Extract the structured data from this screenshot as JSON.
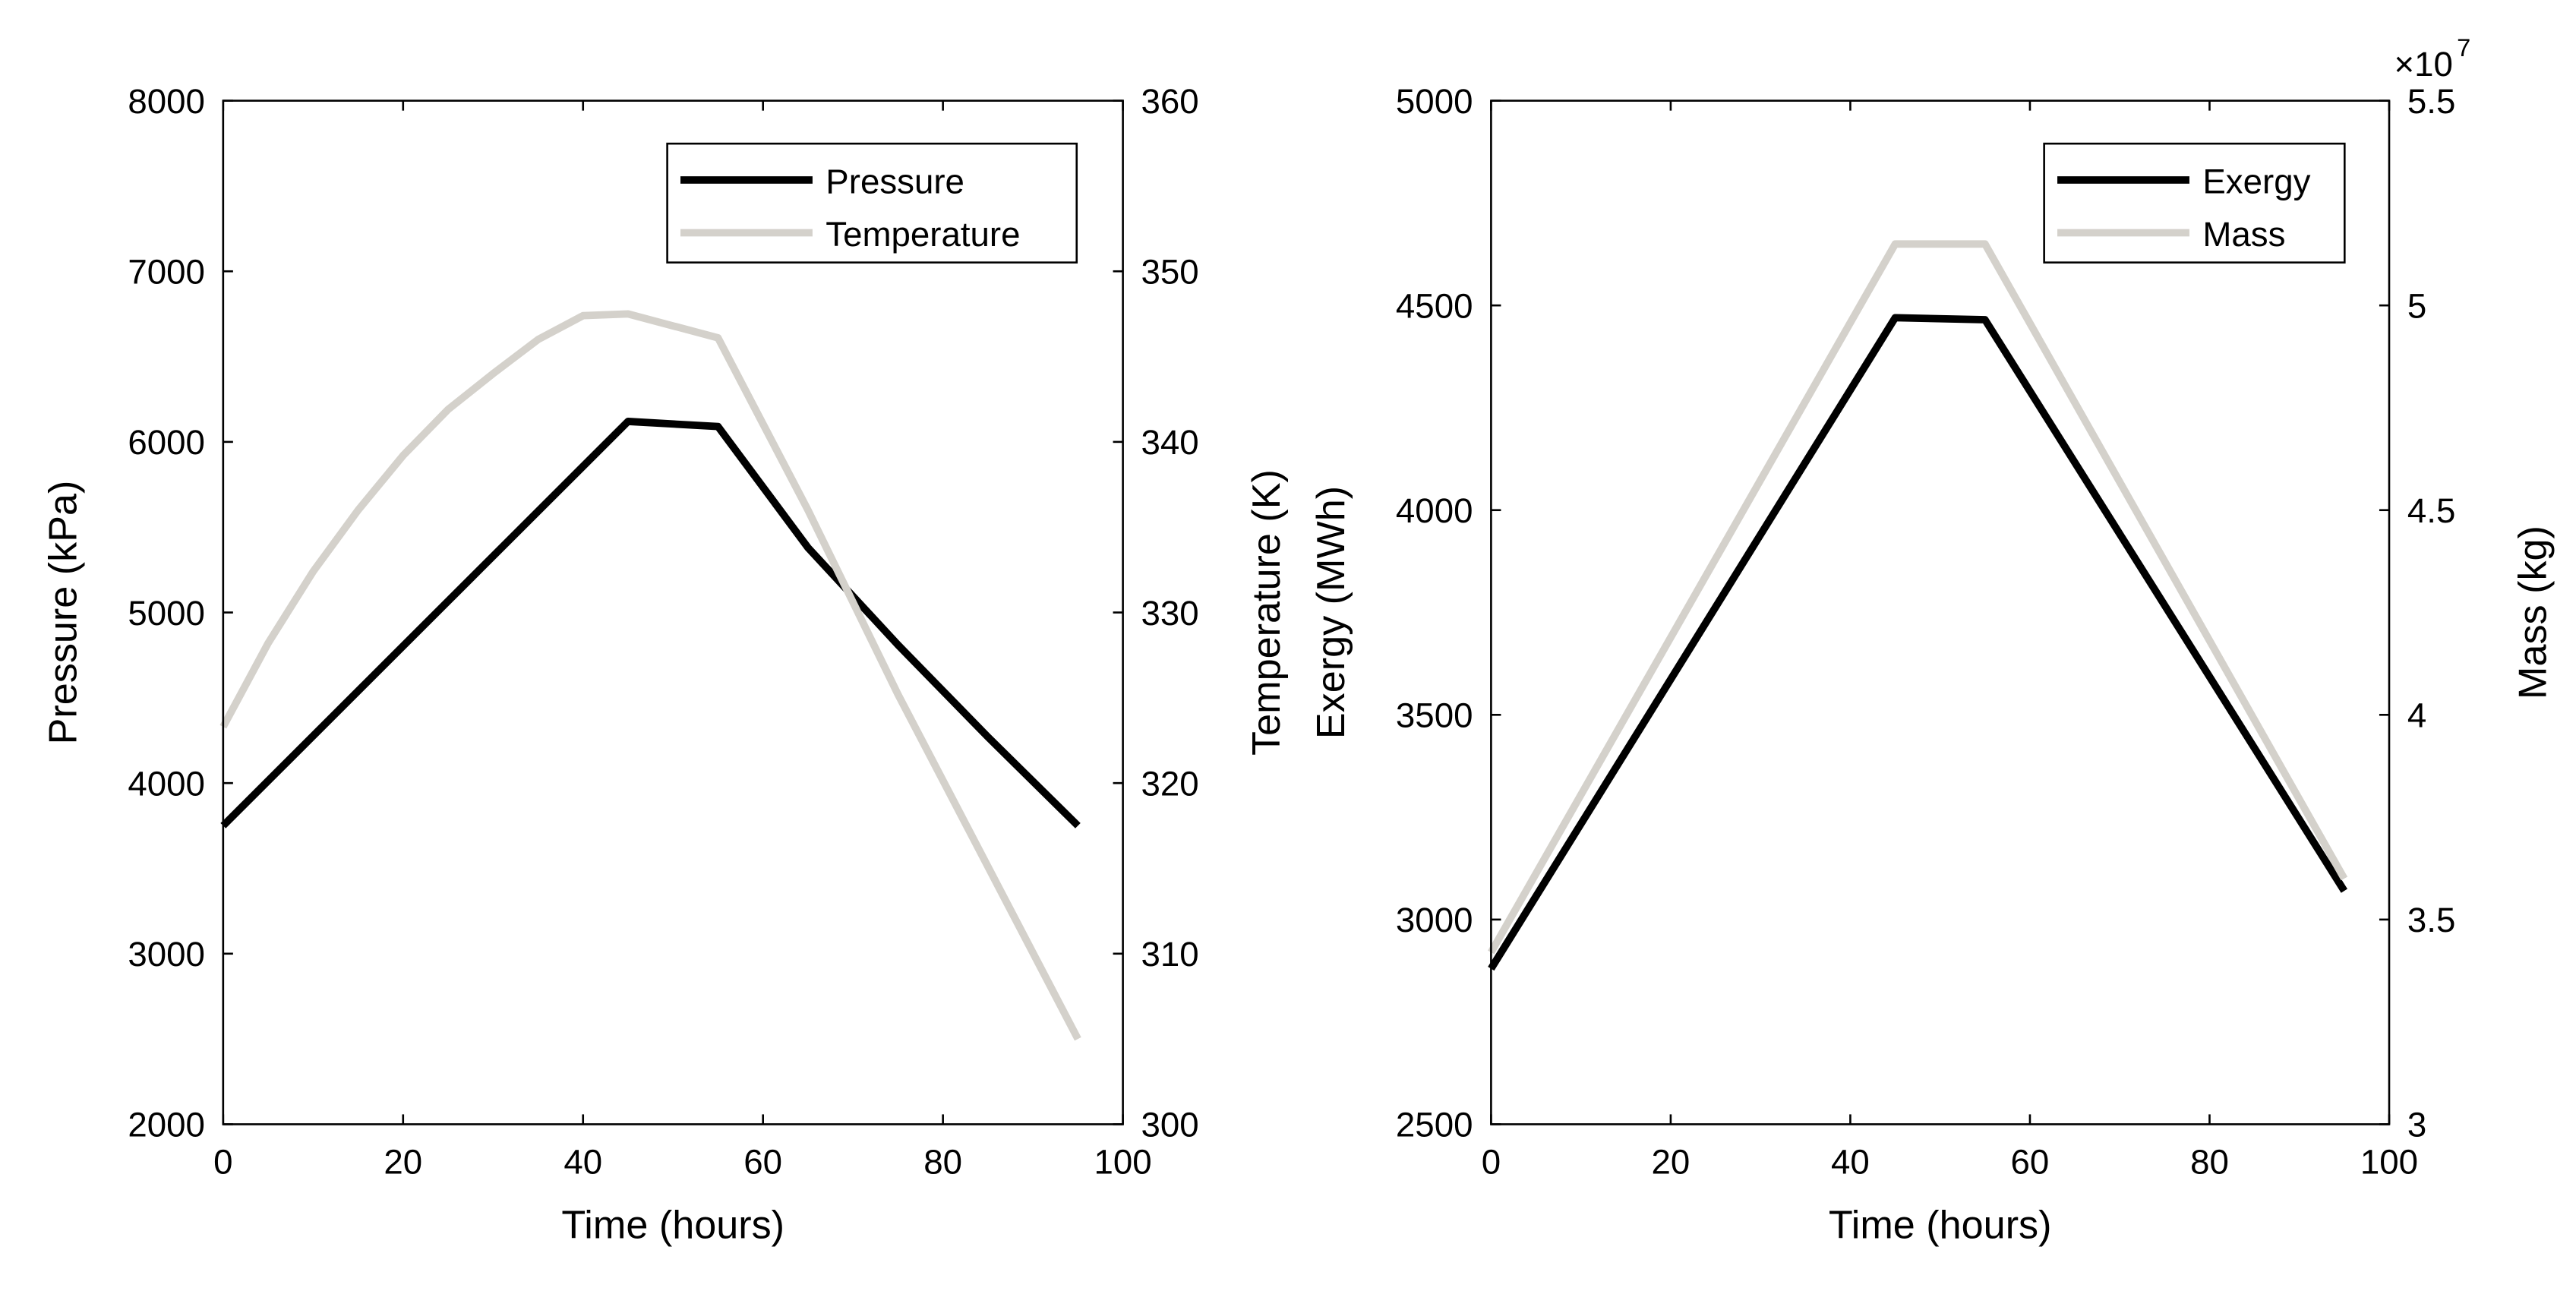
{
  "chart_data": [
    {
      "type": "line",
      "xlabel": "Time (hours)",
      "xlim": [
        0,
        100
      ],
      "xticks": [
        0,
        20,
        40,
        60,
        80,
        100
      ],
      "y_left": {
        "label": "Pressure (kPa)",
        "lim": [
          2000,
          8000
        ],
        "ticks": [
          2000,
          3000,
          4000,
          5000,
          6000,
          7000,
          8000
        ]
      },
      "y_right": {
        "label": "Temperature (K)",
        "lim": [
          300,
          360
        ],
        "ticks": [
          300,
          310,
          320,
          330,
          340,
          350,
          360
        ]
      },
      "legend_position": "top-right",
      "series": [
        {
          "name": "Pressure",
          "axis": "left",
          "color": "#000000",
          "x": [
            0,
            45,
            55,
            65,
            75,
            85,
            95
          ],
          "y": [
            3750,
            6120,
            6090,
            5380,
            4810,
            4270,
            3750
          ]
        },
        {
          "name": "Temperature",
          "axis": "right",
          "color": "#d4d1cb",
          "x": [
            0,
            5,
            10,
            15,
            20,
            25,
            30,
            35,
            40,
            45,
            55,
            65,
            75,
            85,
            95
          ],
          "y": [
            323.3,
            328.2,
            332.4,
            336.0,
            339.2,
            341.9,
            344.0,
            346.0,
            347.4,
            347.5,
            346.1,
            336.0,
            325.2,
            315.1,
            305.0
          ]
        }
      ]
    },
    {
      "type": "line",
      "xlabel": "Time (hours)",
      "xlim": [
        0,
        100
      ],
      "xticks": [
        0,
        20,
        40,
        60,
        80,
        100
      ],
      "y_left": {
        "label": "Exergy (MWh)",
        "lim": [
          2500,
          5000
        ],
        "ticks": [
          2500,
          3000,
          3500,
          4000,
          4500,
          5000
        ]
      },
      "y_right": {
        "label": "Mass (kg)",
        "lim": [
          3,
          5.5
        ],
        "ticks": [
          3,
          3.5,
          4,
          4.5,
          5,
          5.5
        ],
        "tick_labels": [
          "3",
          "3.5",
          "4",
          "4.5",
          "5",
          "5.5"
        ],
        "exponent": "×10",
        "exponent_power": "7"
      },
      "legend_position": "top-right",
      "series": [
        {
          "name": "Exergy",
          "axis": "left",
          "color": "#000000",
          "x": [
            0,
            45,
            55,
            95
          ],
          "y": [
            2880,
            4470,
            4465,
            3070
          ]
        },
        {
          "name": "Mass",
          "axis": "right",
          "color": "#d4d1cb",
          "x": [
            0,
            45,
            55,
            95
          ],
          "y": [
            3.42,
            5.15,
            5.15,
            3.6
          ]
        }
      ]
    }
  ]
}
